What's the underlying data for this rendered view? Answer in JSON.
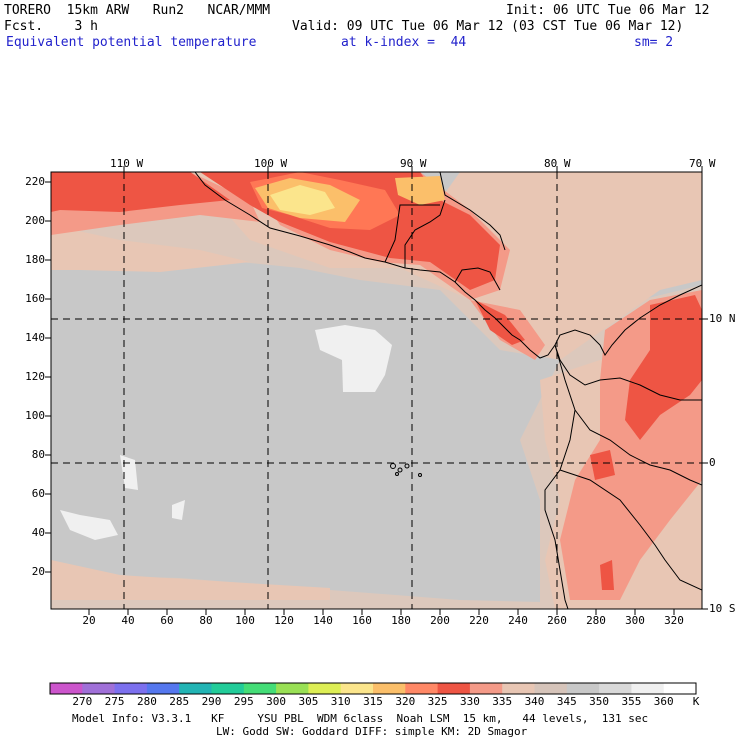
{
  "header": {
    "model": "TORERO  15km ARW   Run2   NCAR/MMM",
    "init": "Init: 06 UTC Tue 06 Mar 12",
    "fcst": "Fcst.    3 h",
    "valid": "Valid: 09 UTC Tue 06 Mar 12 (03 CST Tue 06 Mar 12)",
    "field": "Equivalent potential temperature",
    "kindex": "at k-index =  44",
    "sm": "sm= 2"
  },
  "map": {
    "lon_labels": [
      "110 W",
      "100 W",
      "90 W",
      "80 W",
      "70 W"
    ],
    "lat_labels": [
      "10 N",
      "0",
      "10 S"
    ],
    "y_ticks": [
      "220",
      "200",
      "180",
      "160",
      "140",
      "120",
      "100",
      "80",
      "60",
      "40",
      "20"
    ],
    "x_ticks": [
      "20",
      "40",
      "60",
      "80",
      "100",
      "120",
      "140",
      "160",
      "180",
      "200",
      "220",
      "240",
      "260",
      "280",
      "300",
      "320"
    ],
    "background_color": "#c8c8c8",
    "colors": {
      "c330": "#ee5544",
      "c325": "#ff7755",
      "c335": "#f49a88",
      "c340": "#e8c6b4",
      "c345": "#dcc8bc",
      "c355": "#f0f0f0",
      "c320": "#fbbf6a",
      "c315": "#fbe58c"
    }
  },
  "colorbar": {
    "labels": [
      "270",
      "275",
      "280",
      "285",
      "290",
      "295",
      "300",
      "305",
      "310",
      "315",
      "320",
      "325",
      "330",
      "335",
      "340",
      "345",
      "350",
      "355",
      "360",
      "K"
    ],
    "colors": [
      "#cc55cc",
      "#a070d8",
      "#7c70ee",
      "#5577ee",
      "#22b4b4",
      "#22cc99",
      "#44dd77",
      "#99e055",
      "#ddee55",
      "#fbe58c",
      "#fbbf6a",
      "#ff8866",
      "#ee5544",
      "#f49a88",
      "#e8c6b4",
      "#d6c4ba",
      "#c8c8c8",
      "#d9d9d9",
      "#f0f0f0",
      "#ffffff"
    ]
  },
  "footer": {
    "line1": "Model Info: V3.3.1   KF     YSU PBL  WDM 6class  Noah LSM  15 km,   44 levels,  131 sec",
    "line2": "LW: Godd SW: Goddard DIFF: simple KM: 2D Smagor"
  }
}
